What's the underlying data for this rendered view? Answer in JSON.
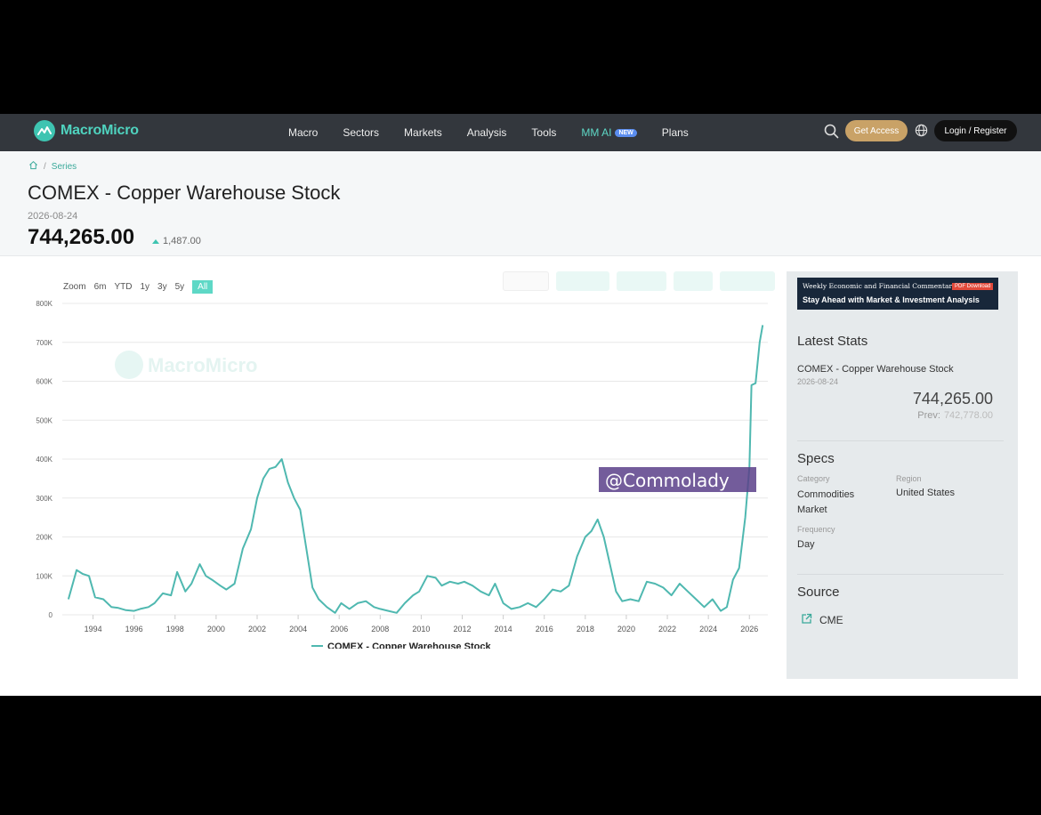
{
  "nav": {
    "logo_text": "MacroMicro",
    "menu": [
      "Macro",
      "Sectors",
      "Markets",
      "Analysis",
      "Tools"
    ],
    "ai_label": "MM AI",
    "ai_badge": "NEW",
    "plans": "Plans",
    "get_access": "Get Access",
    "login": "Login / Register"
  },
  "breadcrumb": {
    "separator": "/",
    "current": "Series"
  },
  "series": {
    "title": "COMEX - Copper Warehouse Stock",
    "date": "2026-08-24",
    "value": "744,265.00",
    "change": "1,487.00"
  },
  "zoom": {
    "label": "Zoom",
    "options": [
      "6m",
      "YTD",
      "1y",
      "3y",
      "5y",
      "All"
    ],
    "active": "All"
  },
  "watermarks": {
    "brand": "MacroMicro",
    "handle": "@Commolady"
  },
  "chart_data": {
    "type": "line",
    "ytick_labels": [
      "0",
      "100K",
      "200K",
      "300K",
      "400K",
      "500K",
      "600K",
      "700K",
      "800K"
    ],
    "xtick_labels": [
      "1994",
      "1996",
      "1998",
      "2000",
      "2002",
      "2004",
      "2006",
      "2008",
      "2010",
      "2012",
      "2014",
      "2016",
      "2018",
      "2020",
      "2022",
      "2024",
      "2026"
    ],
    "ylim": [
      0,
      800000
    ],
    "xlim": [
      1992.5,
      2026.9
    ],
    "legend": "bottom-center",
    "grid": true,
    "color": "#4fb8b0",
    "series": [
      {
        "name": "COMEX - Copper Warehouse Stock",
        "x": [
          1992.8,
          1993.2,
          1993.5,
          1993.8,
          1994.1,
          1994.5,
          1994.9,
          1995.2,
          1995.6,
          1996.0,
          1996.3,
          1996.7,
          1997.0,
          1997.4,
          1997.8,
          1998.1,
          1998.5,
          1998.8,
          1999.2,
          1999.5,
          1999.8,
          2000.2,
          2000.5,
          2000.9,
          2001.3,
          2001.7,
          2002.0,
          2002.3,
          2002.6,
          2002.9,
          2003.2,
          2003.5,
          2003.8,
          2004.1,
          2004.4,
          2004.7,
          2005.0,
          2005.4,
          2005.8,
          2006.1,
          2006.5,
          2006.9,
          2007.3,
          2007.7,
          2008.0,
          2008.4,
          2008.8,
          2009.2,
          2009.6,
          2009.9,
          2010.3,
          2010.7,
          2011.0,
          2011.4,
          2011.8,
          2012.1,
          2012.5,
          2012.9,
          2013.3,
          2013.6,
          2014.0,
          2014.4,
          2014.8,
          2015.2,
          2015.6,
          2016.0,
          2016.4,
          2016.8,
          2017.2,
          2017.6,
          2018.0,
          2018.3,
          2018.6,
          2018.9,
          2019.2,
          2019.5,
          2019.8,
          2020.2,
          2020.6,
          2021.0,
          2021.4,
          2021.8,
          2022.2,
          2022.6,
          2023.0,
          2023.4,
          2023.8,
          2024.2,
          2024.6,
          2024.9,
          2025.2,
          2025.5,
          2025.8,
          2026.0,
          2026.1,
          2026.3,
          2026.5,
          2026.65
        ],
        "y": [
          40000,
          115000,
          105000,
          100000,
          45000,
          40000,
          20000,
          18000,
          12000,
          10000,
          15000,
          20000,
          30000,
          55000,
          50000,
          110000,
          60000,
          80000,
          130000,
          100000,
          90000,
          75000,
          65000,
          80000,
          170000,
          220000,
          300000,
          350000,
          375000,
          380000,
          400000,
          340000,
          300000,
          270000,
          170000,
          70000,
          40000,
          20000,
          5000,
          30000,
          15000,
          30000,
          35000,
          20000,
          15000,
          10000,
          5000,
          30000,
          50000,
          60000,
          100000,
          95000,
          75000,
          85000,
          80000,
          85000,
          75000,
          60000,
          50000,
          80000,
          30000,
          15000,
          20000,
          30000,
          20000,
          40000,
          65000,
          60000,
          75000,
          150000,
          200000,
          215000,
          245000,
          200000,
          130000,
          60000,
          35000,
          40000,
          35000,
          85000,
          80000,
          70000,
          50000,
          80000,
          60000,
          40000,
          20000,
          40000,
          10000,
          20000,
          90000,
          120000,
          250000,
          380000,
          590000,
          595000,
          700000,
          744265
        ]
      }
    ]
  },
  "sidebar": {
    "ad_line1": "Weekly Economic and Financial Commentary",
    "ad_pdf": "PDF Download",
    "ad_line2": "Stay Ahead with  Market & Investment Analysis",
    "latest_stats": "Latest Stats",
    "stat_title": "COMEX - Copper Warehouse Stock",
    "stat_date": "2026-08-24",
    "stat_value": "744,265.00",
    "prev_label": "Prev:",
    "prev_value": "742,778.00",
    "specs": "Specs",
    "category_label": "Category",
    "category_value": "Commodities Market",
    "region_label": "Region",
    "region_value": "United States",
    "frequency_label": "Frequency",
    "frequency_value": "Day",
    "source_heading": "Source",
    "source_value": "CME"
  }
}
